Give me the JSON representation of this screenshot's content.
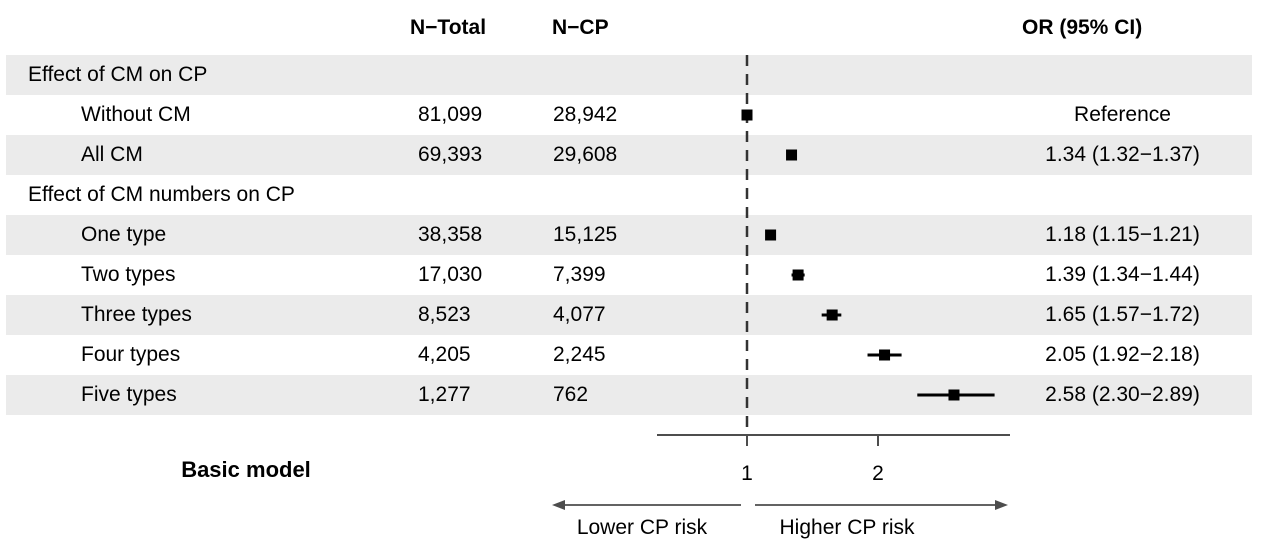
{
  "header": {
    "n_total": "N−Total",
    "n_cp": "N−CP",
    "or_ci": "OR (95% CI)"
  },
  "footer": {
    "model_label": "Basic model",
    "lower_label": "Lower CP risk",
    "higher_label": "Higher CP risk"
  },
  "colors": {
    "band": "#ebebeb",
    "marker": "#000000",
    "axis": "#4d4d4d",
    "reference_line": "#333333",
    "text": "#000000"
  },
  "chart_data": {
    "type": "forest",
    "title": "",
    "model_label": "Basic model",
    "columns": [
      "N−Total",
      "N−CP",
      "OR (95% CI)"
    ],
    "rows": [
      {
        "label": "Effect of CM on CP",
        "section": true,
        "shaded": true,
        "n_total": "",
        "n_cp": "",
        "or_text": "",
        "or": null,
        "ci_low": null,
        "ci_high": null
      },
      {
        "label": "Without CM",
        "section": false,
        "shaded": false,
        "n_total": "81,099",
        "n_cp": "28,942",
        "or_text": "Reference",
        "or": 1.0,
        "ci_low": null,
        "ci_high": null
      },
      {
        "label": "All CM",
        "section": false,
        "shaded": true,
        "n_total": "69,393",
        "n_cp": "29,608",
        "or_text": "1.34 (1.32−1.37)",
        "or": 1.34,
        "ci_low": 1.32,
        "ci_high": 1.37
      },
      {
        "label": "Effect of CM numbers on CP",
        "section": true,
        "shaded": false,
        "n_total": "",
        "n_cp": "",
        "or_text": "",
        "or": null,
        "ci_low": null,
        "ci_high": null
      },
      {
        "label": "One type",
        "section": false,
        "shaded": true,
        "n_total": "38,358",
        "n_cp": "15,125",
        "or_text": "1.18 (1.15−1.21)",
        "or": 1.18,
        "ci_low": 1.15,
        "ci_high": 1.21
      },
      {
        "label": "Two types",
        "section": false,
        "shaded": false,
        "n_total": "17,030",
        "n_cp": "7,399",
        "or_text": "1.39 (1.34−1.44)",
        "or": 1.39,
        "ci_low": 1.34,
        "ci_high": 1.44
      },
      {
        "label": "Three types",
        "section": false,
        "shaded": true,
        "n_total": "8,523",
        "n_cp": "4,077",
        "or_text": "1.65 (1.57−1.72)",
        "or": 1.65,
        "ci_low": 1.57,
        "ci_high": 1.72
      },
      {
        "label": "Four types",
        "section": false,
        "shaded": false,
        "n_total": "4,205",
        "n_cp": "2,245",
        "or_text": "2.05 (1.92−2.18)",
        "or": 2.05,
        "ci_low": 1.92,
        "ci_high": 2.18
      },
      {
        "label": "Five types",
        "section": false,
        "shaded": true,
        "n_total": "1,277",
        "n_cp": "762",
        "or_text": "2.58 (2.30−2.89)",
        "or": 2.58,
        "ci_low": 2.3,
        "ci_high": 2.89
      }
    ],
    "axis": {
      "scale": "linear",
      "ticks": [
        1,
        2
      ],
      "reference_line": 1,
      "range": [
        0.31,
        3.0
      ],
      "arrow_labels": {
        "lower": "Lower CP risk",
        "higher": "Higher CP risk"
      }
    }
  }
}
